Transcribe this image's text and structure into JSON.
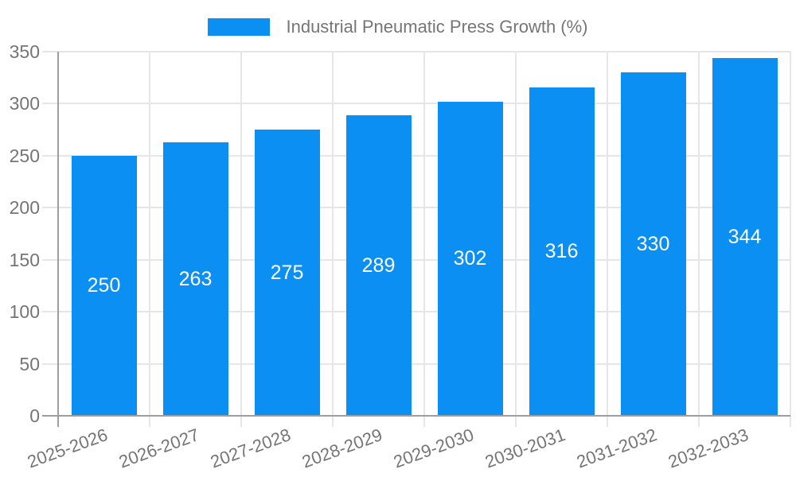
{
  "chart_data": {
    "type": "bar",
    "title": "Industrial Pneumatic Press Growth (%)",
    "categories": [
      "2025-2026",
      "2026-2027",
      "2027-2028",
      "2028-2029",
      "2029-2030",
      "2030-2031",
      "2031-2032",
      "2032-2033"
    ],
    "values": [
      250,
      263,
      275,
      289,
      302,
      316,
      330,
      344
    ],
    "value_labels": [
      "250",
      "263",
      "275",
      "289",
      "302",
      "316",
      "330",
      "344"
    ],
    "xlabel": "",
    "ylabel": "",
    "ylim": [
      0,
      350
    ],
    "yticks": [
      0,
      50,
      100,
      150,
      200,
      250,
      300,
      350
    ],
    "grid": true,
    "legend_position": "top-center",
    "x_label_rotation_deg": -20
  },
  "colors": {
    "bar": "#0b8ff2",
    "axis": "#9e9e9e",
    "grid": "#e6e6e6",
    "text": "#757575",
    "value_label": "#ffffff",
    "background": "#ffffff"
  }
}
